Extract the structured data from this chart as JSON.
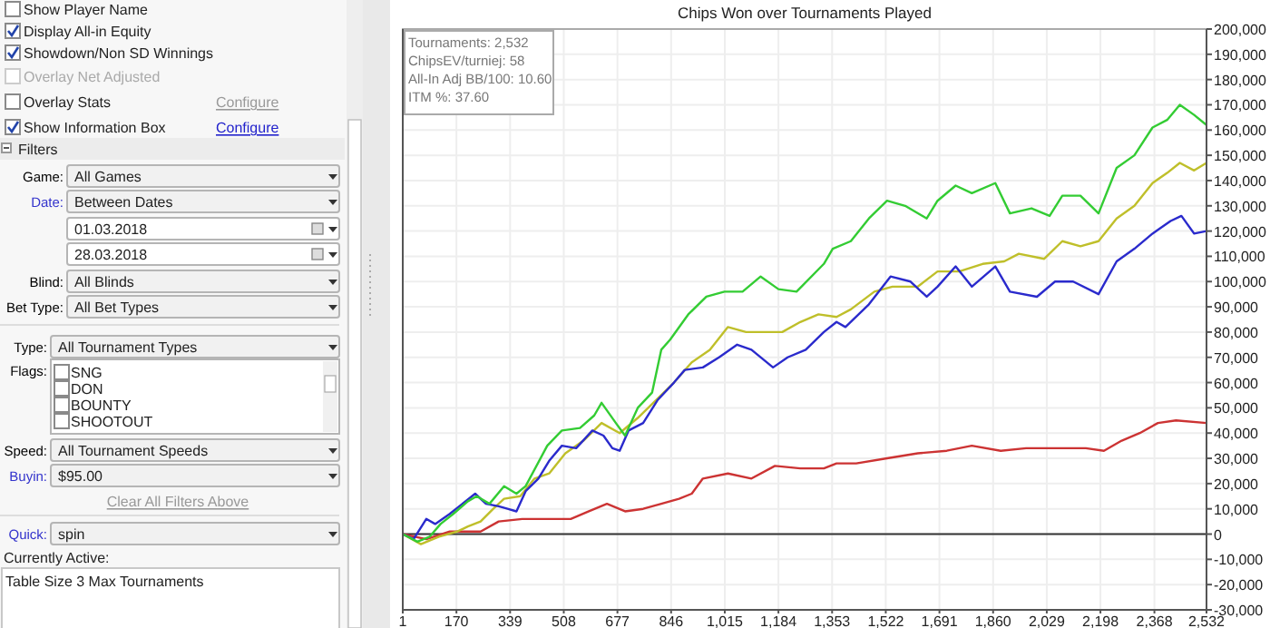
{
  "chart_data": [
    {
      "type": "other",
      "annotations": [
        "Show Player Name",
        "Display All-in Equity",
        "Showdown/Non SD Winnings",
        "Overlay Net Adjusted",
        "Overlay Stats",
        "Configure",
        "Show Information Box",
        "Configure",
        "Filters",
        "Game:",
        "All Games",
        "Date:",
        "Between Dates",
        "01.03.2018",
        "28.03.2018",
        "Blind:",
        "All Blinds",
        "Bet Type:",
        "All Bet Types",
        "Type:",
        "All Tournament Types",
        "Flags:",
        "SNG",
        "DON",
        "BOUNTY",
        "SHOOTOUT",
        "Speed:",
        "All Tournament Speeds",
        "Buyin:",
        "$95.00",
        "Clear All Filters Above",
        "Quick:",
        "spin",
        "Currently Active:",
        "Table Size 3 Max Tournaments"
      ]
    },
    {
      "type": "line",
      "title": "Chips Won over Tournaments Played",
      "annotations": [
        "Tournaments: 2,532",
        "ChipsEV/turniej: 58",
        "All-In Adj BB/100: 10.60",
        "ITM %: 37.60"
      ],
      "xlim": [
        1,
        2532
      ],
      "xticks": [
        1,
        170,
        339,
        508,
        677,
        846,
        {
          "value": 1015,
          "label": "1,015"
        },
        {
          "value": 1184,
          "label": "1,184"
        },
        {
          "value": 1353,
          "label": "1,353"
        },
        {
          "value": 1522,
          "label": "1,522"
        },
        {
          "value": 1691,
          "label": "1,691"
        },
        {
          "value": 1860,
          "label": "1,860"
        },
        {
          "value": 2029,
          "label": "2,029"
        },
        {
          "value": 2198,
          "label": "2,198"
        },
        {
          "value": 2368,
          "label": "2,368"
        },
        {
          "value": 2532,
          "label": "2,532"
        }
      ],
      "ylim": [
        -30000,
        200000
      ],
      "yticks": [
        {
          "value": -30000,
          "label": "-30,000"
        },
        {
          "value": -20000,
          "label": "-20,000"
        },
        {
          "value": -10000,
          "label": "-10,000"
        },
        0,
        {
          "value": 10000,
          "label": "10,000"
        },
        {
          "value": 20000,
          "label": "20,000"
        },
        {
          "value": 30000,
          "label": "30,000"
        },
        {
          "value": 40000,
          "label": "40,000"
        },
        {
          "value": 50000,
          "label": "50,000"
        },
        {
          "value": 60000,
          "label": "60,000"
        },
        {
          "value": 70000,
          "label": "70,000"
        },
        {
          "value": 80000,
          "label": "80,000"
        },
        {
          "value": 90000,
          "label": "90,000"
        },
        {
          "value": 100000,
          "label": "100,000"
        },
        {
          "value": 110000,
          "label": "110,000"
        },
        {
          "value": 120000,
          "label": "120,000"
        },
        {
          "value": 130000,
          "label": "130,000"
        },
        {
          "value": 140000,
          "label": "140,000"
        },
        {
          "value": 150000,
          "label": "150,000"
        },
        {
          "value": 160000,
          "label": "160,000"
        },
        {
          "value": 170000,
          "label": "170,000"
        },
        {
          "value": 180000,
          "label": "180,000"
        },
        {
          "value": 190000,
          "label": "190,000"
        },
        {
          "value": 200000,
          "label": "200,000"
        }
      ],
      "grid": true,
      "ref_lines": [
        {
          "axis": "y",
          "value": 0,
          "color": "#333333"
        }
      ],
      "series": [
        {
          "color": "#cc3333",
          "x": [
            1,
            75,
            149,
            246,
            303,
            377,
            456,
            530,
            587,
            644,
            701,
            758,
            815,
            871,
            911,
            946,
            1025,
            1099,
            1173,
            1253,
            1327,
            1367,
            1429,
            1526,
            1623,
            1714,
            1793,
            1884,
            1964,
            2055,
            2152,
            2209,
            2265,
            2322,
            2379,
            2436,
            2532
          ],
          "values": [
            0,
            -2000,
            1000,
            1000,
            5000,
            6000,
            6000,
            6000,
            9000,
            12000,
            9000,
            10000,
            12000,
            14000,
            16000,
            22000,
            24000,
            22000,
            27000,
            26000,
            26000,
            28000,
            28000,
            30000,
            32000,
            33000,
            35000,
            33000,
            34000,
            34000,
            34000,
            33000,
            37000,
            40000,
            44000,
            45000,
            44000
          ]
        },
        {
          "color": "#bfbf2a",
          "x": [
            1,
            58,
            115,
            172,
            206,
            246,
            286,
            320,
            371,
            416,
            462,
            513,
            570,
            627,
            684,
            741,
            798,
            855,
            911,
            968,
            1025,
            1082,
            1139,
            1196,
            1253,
            1310,
            1367,
            1412,
            1486,
            1543,
            1623,
            1685,
            1753,
            1827,
            1895,
            1941,
            2021,
            2078,
            2135,
            2192,
            2249,
            2305,
            2362,
            2408,
            2448,
            2493,
            2532
          ],
          "values": [
            0,
            -4000,
            -1000,
            1000,
            3000,
            5000,
            10000,
            14000,
            15000,
            22000,
            24000,
            32000,
            37000,
            44000,
            40000,
            46000,
            53000,
            60000,
            68000,
            73000,
            82000,
            80000,
            80000,
            80000,
            84000,
            87000,
            86000,
            89000,
            96000,
            98000,
            98000,
            104000,
            104000,
            107000,
            108000,
            111000,
            109000,
            116000,
            114000,
            116000,
            125000,
            130000,
            139000,
            143000,
            147000,
            144000,
            147000
          ]
        },
        {
          "color": "#2a2acc",
          "x": [
            1,
            35,
            75,
            103,
            149,
            229,
            263,
            303,
            331,
            359,
            388,
            428,
            462,
            502,
            547,
            598,
            633,
            661,
            684,
            712,
            758,
            803,
            855,
            889,
            946,
            997,
            1054,
            1099,
            1167,
            1213,
            1270,
            1327,
            1367,
            1395,
            1469,
            1537,
            1600,
            1651,
            1685,
            1742,
            1793,
            1867,
            1913,
            1998,
            2055,
            2112,
            2192,
            2249,
            2305,
            2362,
            2419,
            2453,
            2493,
            2532
          ],
          "values": [
            0,
            -2000,
            6000,
            4000,
            8000,
            16000,
            12000,
            11000,
            10000,
            9000,
            17000,
            22000,
            29000,
            35000,
            34000,
            41000,
            39000,
            34000,
            33000,
            41000,
            44000,
            53000,
            60000,
            65000,
            66000,
            70000,
            75000,
            73000,
            66000,
            70000,
            73000,
            80000,
            84000,
            82000,
            91000,
            102000,
            100000,
            94000,
            98000,
            106000,
            98000,
            106000,
            96000,
            94000,
            100000,
            100000,
            95000,
            108000,
            113000,
            119000,
            124000,
            126000,
            119000,
            120000
          ]
        },
        {
          "color": "#33cc33",
          "x": [
            1,
            47,
            86,
            120,
            160,
            206,
            234,
            274,
            320,
            359,
            388,
            456,
            502,
            559,
            604,
            627,
            672,
            701,
            741,
            786,
            815,
            843,
            900,
            957,
            1014,
            1071,
            1128,
            1184,
            1241,
            1327,
            1355,
            1412,
            1469,
            1526,
            1583,
            1651,
            1685,
            1742,
            1793,
            1867,
            1913,
            1981,
            2038,
            2078,
            2135,
            2192,
            2249,
            2305,
            2362,
            2408,
            2448,
            2493,
            2532
          ],
          "values": [
            0,
            -3000,
            -1000,
            4000,
            8000,
            13000,
            15000,
            12000,
            19000,
            16000,
            19000,
            35000,
            41000,
            42000,
            47000,
            52000,
            44000,
            39000,
            50000,
            56000,
            73000,
            77000,
            87000,
            94000,
            96000,
            96000,
            102000,
            97000,
            96000,
            107000,
            113000,
            116000,
            125000,
            132000,
            130000,
            125000,
            132000,
            138000,
            135000,
            139000,
            127000,
            129000,
            126000,
            134000,
            134000,
            127000,
            145000,
            150000,
            161000,
            164000,
            170000,
            166000,
            162000
          ]
        }
      ]
    }
  ]
}
